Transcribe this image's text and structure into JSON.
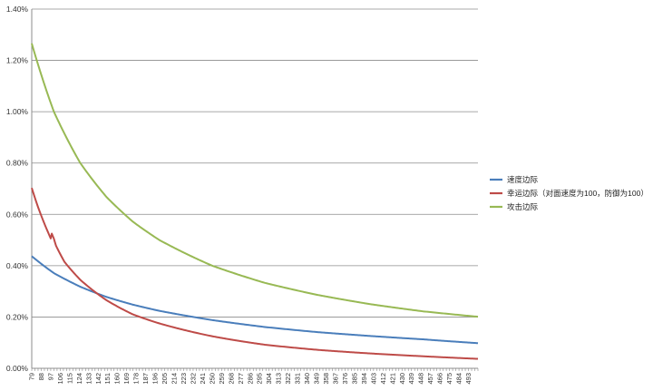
{
  "chart_data": {
    "type": "line",
    "title": "",
    "xlabel": "",
    "ylabel": "",
    "ylim": [
      0,
      0.014
    ],
    "y_ticks": [
      "0.00%",
      "0.20%",
      "0.40%",
      "0.60%",
      "0.80%",
      "1.00%",
      "1.20%",
      "1.40%"
    ],
    "x_range": [
      79,
      502
    ],
    "x_ticks": [
      "79",
      "88",
      "97",
      "106",
      "115",
      "124",
      "133",
      "142",
      "151",
      "160",
      "169",
      "178",
      "187",
      "196",
      "205",
      "214",
      "223",
      "232",
      "241",
      "250",
      "259",
      "268",
      "277",
      "286",
      "295",
      "304",
      "313",
      "322",
      "331",
      "340",
      "349",
      "358",
      "367",
      "376",
      "385",
      "394",
      "403",
      "412",
      "421",
      "430",
      "439",
      "448",
      "457",
      "466",
      "475",
      "484",
      "493"
    ],
    "grid": "horizontal",
    "legend_position": "right",
    "series": [
      {
        "name": "速度边际",
        "color": "#4a7ebb",
        "x": [
          79,
          100,
          125,
          150,
          175,
          200,
          250,
          300,
          350,
          400,
          450,
          502
        ],
        "values": [
          0.00437,
          0.00371,
          0.00318,
          0.00278,
          0.00248,
          0.00224,
          0.00188,
          0.00161,
          0.00141,
          0.00126,
          0.00113,
          0.00098
        ]
      },
      {
        "name": "幸运边际（对面速度为100，防御为100）",
        "color": "#be4b48",
        "x": [
          79,
          85,
          90,
          95,
          97,
          98,
          100,
          102,
          110,
          125,
          150,
          175,
          200,
          250,
          300,
          350,
          400,
          450,
          502
        ],
        "values": [
          0.00703,
          0.00628,
          0.00574,
          0.00525,
          0.00506,
          0.00525,
          0.00505,
          0.00478,
          0.00415,
          0.00345,
          0.00265,
          0.0021,
          0.00175,
          0.00125,
          0.00092,
          0.00072,
          0.00058,
          0.00047,
          0.00037
        ]
      },
      {
        "name": "攻击边际",
        "color": "#98b954",
        "x": [
          79,
          100,
          125,
          150,
          175,
          200,
          250,
          300,
          350,
          400,
          450,
          502
        ],
        "values": [
          0.01266,
          0.01,
          0.008,
          0.00667,
          0.00571,
          0.005,
          0.004,
          0.00333,
          0.00286,
          0.0025,
          0.00222,
          0.00201
        ]
      }
    ]
  }
}
